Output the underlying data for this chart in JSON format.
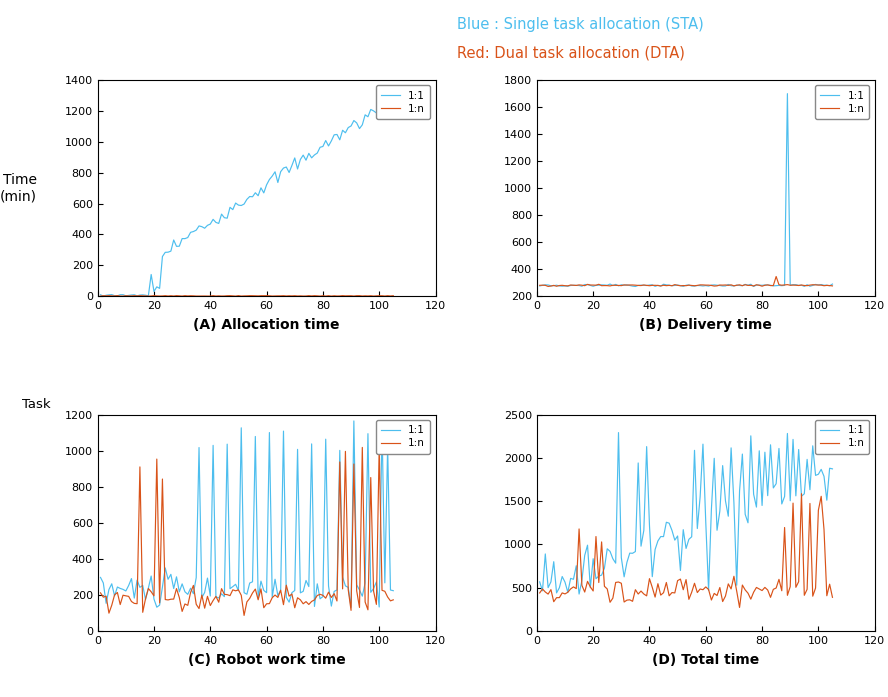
{
  "title_blue": "Blue : Single task allocation (STA)",
  "title_red": "Red: Dual task allocation (DTA)",
  "color_STA": "#4DBEEE",
  "color_DTA": "#D95319",
  "subplot_titles": [
    "(A) Allocation time",
    "(B) Delivery time",
    "(C) Robot work time",
    "(D) Total time"
  ],
  "ylabel_A": "Time\n(min)",
  "xlabel_A": "Task",
  "xlim": [
    0,
    120
  ],
  "ylim_A": [
    0,
    1400
  ],
  "ylim_B": [
    200,
    1800
  ],
  "ylim_C": [
    0,
    1200
  ],
  "ylim_D": [
    0,
    2500
  ],
  "xticks": [
    0,
    20,
    40,
    60,
    80,
    100,
    120
  ],
  "legend_labels": [
    "1:1",
    "1:n"
  ],
  "n_tasks": 105
}
